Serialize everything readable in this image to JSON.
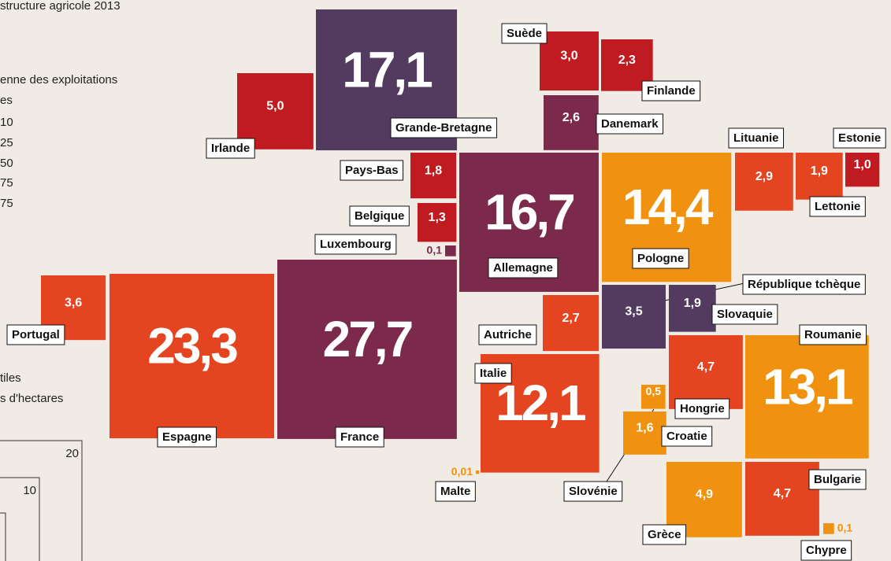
{
  "legend": {
    "title": "structure agricole 2013",
    "size_title": [
      "enne des exploitations",
      "es"
    ],
    "size_classes": [
      "10",
      "25",
      "50",
      "75",
      "75"
    ],
    "area_title": [
      "tiles",
      "s d'hectares"
    ],
    "area_ticks": [
      "20",
      "10"
    ]
  },
  "countries": [
    {
      "name": "Grande-Bretagne",
      "value": 17.1,
      "value_label": "17,1",
      "color": "#523b5f"
    },
    {
      "name": "Irlande",
      "value": 5.0,
      "value_label": "5,0",
      "color": "#bf1b20"
    },
    {
      "name": "Suède",
      "value": 3.0,
      "value_label": "3,0",
      "color": "#bf1b20"
    },
    {
      "name": "Finlande",
      "value": 2.3,
      "value_label": "2,3",
      "color": "#bf1b20"
    },
    {
      "name": "Danemark",
      "value": 2.6,
      "value_label": "2,6",
      "color": "#7c2a4b"
    },
    {
      "name": "Pays-Bas",
      "value": 1.8,
      "value_label": "1,8",
      "color": "#bf1b20"
    },
    {
      "name": "Belgique",
      "value": 1.3,
      "value_label": "1,3",
      "color": "#bf1b20"
    },
    {
      "name": "Luxembourg",
      "value": 0.1,
      "value_label": "0,1",
      "color": "#7c2a4b"
    },
    {
      "name": "Allemagne",
      "value": 16.7,
      "value_label": "16,7",
      "color": "#7c2a4b"
    },
    {
      "name": "Pologne",
      "value": 14.4,
      "value_label": "14,4",
      "color": "#f0910f"
    },
    {
      "name": "Lituanie",
      "value": 2.9,
      "value_label": "2,9",
      "color": "#e4441f"
    },
    {
      "name": "Lettonie",
      "value": 1.9,
      "value_label": "1,9",
      "color": "#e4441f"
    },
    {
      "name": "Estonie",
      "value": 1.0,
      "value_label": "1,0",
      "color": "#bf1b20"
    },
    {
      "name": "République tchèque",
      "value": 3.5,
      "value_label": "3,5",
      "color": "#523b5f"
    },
    {
      "name": "Slovaquie",
      "value": 1.9,
      "value_label": "1,9",
      "color": "#523b5f"
    },
    {
      "name": "Autriche",
      "value": 2.7,
      "value_label": "2,7",
      "color": "#e4441f"
    },
    {
      "name": "Roumanie",
      "value": 13.1,
      "value_label": "13,1",
      "color": "#f0910f"
    },
    {
      "name": "Hongrie",
      "value": 4.7,
      "value_label": "4,7",
      "color": "#e4441f"
    },
    {
      "name": "Italie",
      "value": 12.1,
      "value_label": "12,1",
      "color": "#e4441f"
    },
    {
      "name": "Slovénie",
      "value": 0.5,
      "value_label": "0,5",
      "color": "#f0910f"
    },
    {
      "name": "Croatie",
      "value": 1.6,
      "value_label": "1,6",
      "color": "#f0910f"
    },
    {
      "name": "Malte",
      "value": 0.01,
      "value_label": "0,01",
      "color": "#f0910f"
    },
    {
      "name": "Grèce",
      "value": 4.9,
      "value_label": "4,9",
      "color": "#f0910f"
    },
    {
      "name": "Bulgarie",
      "value": 4.7,
      "value_label": "4,7",
      "color": "#e4441f"
    },
    {
      "name": "Chypre",
      "value": 0.1,
      "value_label": "0,1",
      "color": "#f0910f"
    },
    {
      "name": "Portugal",
      "value": 3.6,
      "value_label": "3,6",
      "color": "#e4441f"
    },
    {
      "name": "Espagne",
      "value": 23.3,
      "value_label": "23,3",
      "color": "#e4441f"
    },
    {
      "name": "France",
      "value": 27.7,
      "value_label": "27,7",
      "color": "#7c2a4b"
    }
  ]
}
